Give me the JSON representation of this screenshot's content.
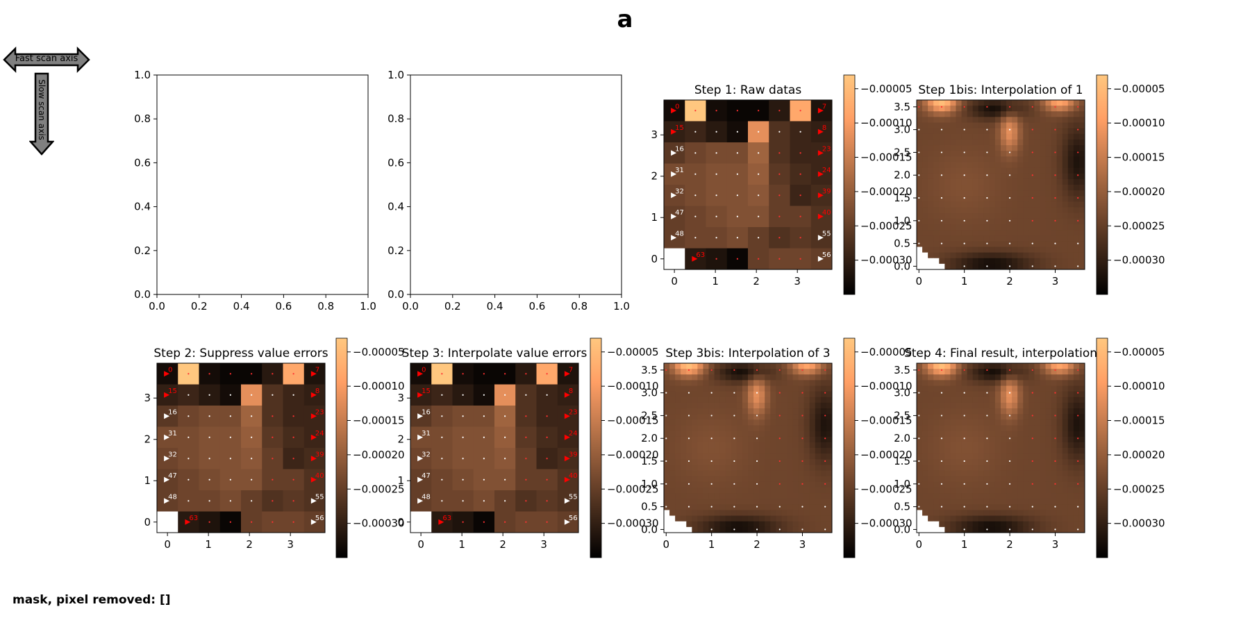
{
  "figure": {
    "suptitle": "a",
    "footer": "mask, pixel removed: []",
    "fast_axis_label": "Fast scan axis",
    "slow_axis_label": "Slow scan axis"
  },
  "colormap": "copper",
  "colorbar": {
    "range": [
      -0.00035,
      -3e-05
    ],
    "ticks": [
      -5e-05,
      -0.0001,
      -0.00015,
      -0.0002,
      -0.00025,
      -0.0003
    ],
    "tick_labels": [
      "−0.00005",
      "−0.00010",
      "−0.00015",
      "−0.00020",
      "−0.00025",
      "−0.00030"
    ]
  },
  "chart_data": [
    {
      "type": "heatmap",
      "title": "",
      "empty": true,
      "xlim": [
        0.0,
        1.0
      ],
      "ylim": [
        0.0,
        1.0
      ],
      "xticks": [
        0.0,
        0.2,
        0.4,
        0.6,
        0.8,
        1.0
      ],
      "yticks": [
        0.0,
        0.2,
        0.4,
        0.6,
        0.8,
        1.0
      ],
      "tick_labels": [
        "0.0",
        "0.2",
        "0.4",
        "0.6",
        "0.8",
        "1.0"
      ]
    },
    {
      "type": "heatmap",
      "title": "",
      "empty": true,
      "xlim": [
        0.0,
        1.0
      ],
      "ylim": [
        0.0,
        1.0
      ],
      "xticks": [
        0.0,
        0.2,
        0.4,
        0.6,
        0.8,
        1.0
      ],
      "yticks": [
        0.0,
        0.2,
        0.4,
        0.6,
        0.8,
        1.0
      ],
      "tick_labels": [
        "0.0",
        "0.2",
        "0.4",
        "0.6",
        "0.8",
        "1.0"
      ]
    },
    {
      "type": "heatmap",
      "title": "Step 1: Raw datas",
      "mode": "grid",
      "xticks": [
        0,
        1,
        2,
        3
      ],
      "yticks": [
        0,
        1,
        2,
        3
      ],
      "xtick_labels": [
        "0",
        "1",
        "2",
        "3"
      ],
      "ytick_labels": [
        "0",
        "1",
        "2",
        "3"
      ],
      "grid_rows": [
        [
          -0.00033,
          -3e-05,
          -0.00033,
          -0.00034,
          -0.00034,
          -0.00031,
          -8e-05,
          -0.00032
        ],
        [
          -0.0003,
          -0.00029,
          -0.00031,
          -0.00033,
          -0.00012,
          -0.00027,
          -0.00029,
          -0.0003
        ],
        [
          -0.00026,
          -0.00024,
          -0.00023,
          -0.00023,
          -0.00019,
          -0.00027,
          -0.00029,
          -0.00029
        ],
        [
          -0.00023,
          -0.00023,
          -0.00022,
          -0.00022,
          -0.0002,
          -0.00026,
          -0.00028,
          -0.00029
        ],
        [
          -0.00024,
          -0.00023,
          -0.00022,
          -0.00022,
          -0.00021,
          -0.00025,
          -0.00029,
          -0.00028
        ],
        [
          -0.00025,
          -0.00024,
          -0.00023,
          -0.00022,
          -0.00022,
          -0.00025,
          -0.00025,
          -0.00027
        ],
        [
          -0.00025,
          -0.00024,
          -0.00024,
          -0.00023,
          -0.00025,
          -0.00027,
          -0.00026,
          -0.00027
        ],
        [
          null,
          -0.00031,
          -0.00032,
          -0.00034,
          -0.00025,
          -0.00024,
          -0.00024,
          -0.00025
        ]
      ],
      "markers": [
        {
          "label": "0",
          "row": 0,
          "col": 0,
          "color": "#ff0000"
        },
        {
          "label": "7",
          "row": 0,
          "col": 7,
          "color": "#ff0000"
        },
        {
          "label": "15",
          "row": 1,
          "col": 0,
          "color": "#ff0000"
        },
        {
          "label": "8",
          "row": 1,
          "col": 7,
          "color": "#ff0000"
        },
        {
          "label": "16",
          "row": 2,
          "col": 0,
          "color": "#ffffff"
        },
        {
          "label": "23",
          "row": 2,
          "col": 7,
          "color": "#ff0000"
        },
        {
          "label": "31",
          "row": 3,
          "col": 0,
          "color": "#ffffff"
        },
        {
          "label": "24",
          "row": 3,
          "col": 7,
          "color": "#ff0000"
        },
        {
          "label": "32",
          "row": 4,
          "col": 0,
          "color": "#ffffff"
        },
        {
          "label": "39",
          "row": 4,
          "col": 7,
          "color": "#ff0000"
        },
        {
          "label": "47",
          "row": 5,
          "col": 0,
          "color": "#ffffff"
        },
        {
          "label": "40",
          "row": 5,
          "col": 7,
          "color": "#ff0000"
        },
        {
          "label": "48",
          "row": 6,
          "col": 0,
          "color": "#ffffff"
        },
        {
          "label": "55",
          "row": 6,
          "col": 7,
          "color": "#ffffff"
        },
        {
          "label": "63",
          "row": 7,
          "col": 1,
          "color": "#ff0000"
        },
        {
          "label": "56",
          "row": 7,
          "col": 7,
          "color": "#ffffff"
        }
      ]
    },
    {
      "type": "heatmap",
      "title": "Step 1bis: Interpolation of 1",
      "mode": "interp",
      "xticks": [
        0,
        1,
        2,
        3
      ],
      "xtick_labels": [
        "0",
        "1",
        "2",
        "3"
      ],
      "yticks": [
        0.0,
        0.5,
        1.0,
        1.5,
        2.0,
        2.5,
        3.0,
        3.5
      ],
      "ytick_labels": [
        "0.0",
        "0.5",
        "1.0",
        "1.5",
        "2.0",
        "2.5",
        "3.0",
        "3.5"
      ],
      "ylim": [
        -0.07,
        3.65
      ]
    },
    {
      "type": "heatmap",
      "title": "Step 2: Suppress value errors",
      "mode": "grid",
      "xticks": [
        0,
        1,
        2,
        3
      ],
      "yticks": [
        0,
        1,
        2,
        3
      ],
      "xtick_labels": [
        "0",
        "1",
        "2",
        "3"
      ],
      "ytick_labels": [
        "0",
        "1",
        "2",
        "3"
      ],
      "grid_rows": [
        [
          -0.00033,
          -3e-05,
          -0.00033,
          -0.00034,
          -0.00034,
          -0.00031,
          -8e-05,
          -0.00032
        ],
        [
          -0.0003,
          -0.00029,
          -0.00031,
          -0.00033,
          -0.00012,
          -0.00027,
          -0.00029,
          -0.0003
        ],
        [
          -0.00026,
          -0.00024,
          -0.00023,
          -0.00023,
          -0.00019,
          -0.00027,
          -0.00029,
          -0.00029
        ],
        [
          -0.00023,
          -0.00023,
          -0.00022,
          -0.00022,
          -0.0002,
          -0.00026,
          -0.00028,
          -0.00029
        ],
        [
          -0.00024,
          -0.00023,
          -0.00022,
          -0.00022,
          -0.00021,
          -0.00025,
          -0.00029,
          -0.00028
        ],
        [
          -0.00025,
          -0.00024,
          -0.00023,
          -0.00022,
          -0.00022,
          -0.00025,
          -0.00025,
          -0.00027
        ],
        [
          -0.00025,
          -0.00024,
          -0.00024,
          -0.00023,
          -0.00025,
          -0.00027,
          -0.00026,
          -0.00027
        ],
        [
          null,
          -0.00031,
          -0.00032,
          -0.00034,
          -0.00025,
          -0.00024,
          -0.00024,
          -0.00025
        ]
      ],
      "markers": [
        {
          "label": "0",
          "row": 0,
          "col": 0,
          "color": "#ff0000"
        },
        {
          "label": "7",
          "row": 0,
          "col": 7,
          "color": "#ff0000"
        },
        {
          "label": "15",
          "row": 1,
          "col": 0,
          "color": "#ff0000"
        },
        {
          "label": "8",
          "row": 1,
          "col": 7,
          "color": "#ff0000"
        },
        {
          "label": "16",
          "row": 2,
          "col": 0,
          "color": "#ffffff"
        },
        {
          "label": "23",
          "row": 2,
          "col": 7,
          "color": "#ff0000"
        },
        {
          "label": "31",
          "row": 3,
          "col": 0,
          "color": "#ffffff"
        },
        {
          "label": "24",
          "row": 3,
          "col": 7,
          "color": "#ff0000"
        },
        {
          "label": "32",
          "row": 4,
          "col": 0,
          "color": "#ffffff"
        },
        {
          "label": "39",
          "row": 4,
          "col": 7,
          "color": "#ff0000"
        },
        {
          "label": "47",
          "row": 5,
          "col": 0,
          "color": "#ffffff"
        },
        {
          "label": "40",
          "row": 5,
          "col": 7,
          "color": "#ff0000"
        },
        {
          "label": "48",
          "row": 6,
          "col": 0,
          "color": "#ffffff"
        },
        {
          "label": "55",
          "row": 6,
          "col": 7,
          "color": "#ffffff"
        },
        {
          "label": "63",
          "row": 7,
          "col": 1,
          "color": "#ff0000"
        },
        {
          "label": "56",
          "row": 7,
          "col": 7,
          "color": "#ffffff"
        }
      ]
    },
    {
      "type": "heatmap",
      "title": "Step 3: Interpolate value errors",
      "mode": "grid",
      "xticks": [
        0,
        1,
        2,
        3
      ],
      "yticks": [
        0,
        1,
        2,
        3
      ],
      "xtick_labels": [
        "0",
        "1",
        "2",
        "3"
      ],
      "ytick_labels": [
        "0",
        "1",
        "2",
        "3"
      ],
      "grid_rows": [
        [
          -0.00033,
          -3e-05,
          -0.00033,
          -0.00034,
          -0.00034,
          -0.00031,
          -8e-05,
          -0.00032
        ],
        [
          -0.0003,
          -0.00029,
          -0.00031,
          -0.00033,
          -0.00012,
          -0.00027,
          -0.00029,
          -0.0003
        ],
        [
          -0.00026,
          -0.00024,
          -0.00023,
          -0.00023,
          -0.00019,
          -0.00027,
          -0.00029,
          -0.00029
        ],
        [
          -0.00023,
          -0.00023,
          -0.00022,
          -0.00022,
          -0.0002,
          -0.00026,
          -0.00028,
          -0.00029
        ],
        [
          -0.00024,
          -0.00023,
          -0.00022,
          -0.00022,
          -0.00021,
          -0.00025,
          -0.00029,
          -0.00028
        ],
        [
          -0.00025,
          -0.00024,
          -0.00023,
          -0.00022,
          -0.00022,
          -0.00025,
          -0.00025,
          -0.00027
        ],
        [
          -0.00025,
          -0.00024,
          -0.00024,
          -0.00023,
          -0.00025,
          -0.00027,
          -0.00026,
          -0.00027
        ],
        [
          null,
          -0.00031,
          -0.00032,
          -0.00034,
          -0.00025,
          -0.00024,
          -0.00024,
          -0.00025
        ]
      ],
      "markers": [
        {
          "label": "0",
          "row": 0,
          "col": 0,
          "color": "#ff0000"
        },
        {
          "label": "7",
          "row": 0,
          "col": 7,
          "color": "#ff0000"
        },
        {
          "label": "15",
          "row": 1,
          "col": 0,
          "color": "#ff0000"
        },
        {
          "label": "8",
          "row": 1,
          "col": 7,
          "color": "#ff0000"
        },
        {
          "label": "16",
          "row": 2,
          "col": 0,
          "color": "#ffffff"
        },
        {
          "label": "23",
          "row": 2,
          "col": 7,
          "color": "#ff0000"
        },
        {
          "label": "31",
          "row": 3,
          "col": 0,
          "color": "#ffffff"
        },
        {
          "label": "24",
          "row": 3,
          "col": 7,
          "color": "#ff0000"
        },
        {
          "label": "32",
          "row": 4,
          "col": 0,
          "color": "#ffffff"
        },
        {
          "label": "39",
          "row": 4,
          "col": 7,
          "color": "#ff0000"
        },
        {
          "label": "47",
          "row": 5,
          "col": 0,
          "color": "#ffffff"
        },
        {
          "label": "40",
          "row": 5,
          "col": 7,
          "color": "#ff0000"
        },
        {
          "label": "48",
          "row": 6,
          "col": 0,
          "color": "#ffffff"
        },
        {
          "label": "55",
          "row": 6,
          "col": 7,
          "color": "#ffffff"
        },
        {
          "label": "63",
          "row": 7,
          "col": 1,
          "color": "#ff0000"
        },
        {
          "label": "56",
          "row": 7,
          "col": 7,
          "color": "#ffffff"
        }
      ]
    },
    {
      "type": "heatmap",
      "title": "Step 3bis: Interpolation of 3",
      "mode": "interp",
      "xticks": [
        0,
        1,
        2,
        3
      ],
      "xtick_labels": [
        "0",
        "1",
        "2",
        "3"
      ],
      "yticks": [
        0.0,
        0.5,
        1.0,
        1.5,
        2.0,
        2.5,
        3.0,
        3.5
      ],
      "ytick_labels": [
        "0.0",
        "0.5",
        "1.0",
        "1.5",
        "2.0",
        "2.5",
        "3.0",
        "3.5"
      ],
      "ylim": [
        -0.07,
        3.65
      ]
    },
    {
      "type": "heatmap",
      "title": "Step 4: Final result, interpolation",
      "mode": "interp",
      "xticks": [
        0,
        1,
        2,
        3
      ],
      "xtick_labels": [
        "0",
        "1",
        "2",
        "3"
      ],
      "yticks": [
        0.0,
        0.5,
        1.0,
        1.5,
        2.0,
        2.5,
        3.0,
        3.5
      ],
      "ytick_labels": [
        "0.0",
        "0.5",
        "1.0",
        "1.5",
        "2.0",
        "2.5",
        "3.0",
        "3.5"
      ],
      "ylim": [
        -0.07,
        3.65
      ]
    }
  ]
}
